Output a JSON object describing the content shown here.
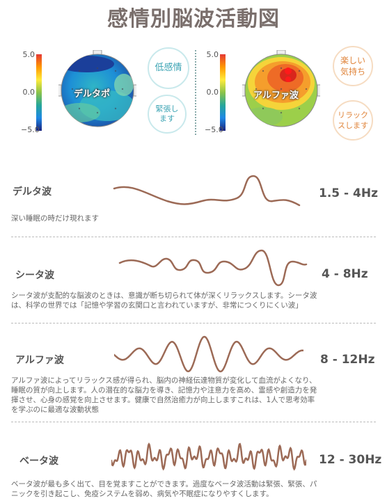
{
  "title": "感情別脳波活動図",
  "maps": {
    "scale_top": "5.0",
    "scale_mid": "0.0",
    "scale_bottom": "−5.0",
    "delta": {
      "label": "デルタポ",
      "bubbles": [
        "低感情",
        "緊張し\nます"
      ]
    },
    "alpha": {
      "label": "アルファ波",
      "bubbles": [
        "楽しい\n気持ち",
        "リラック\nスします"
      ]
    }
  },
  "waves": [
    {
      "name": "デルタ波",
      "freq": "1.5 - 4Hz",
      "desc": "深い睡眠の時だけ現れます"
    },
    {
      "name": "シータ波",
      "freq": "4 - 8Hz",
      "desc": "シータ波が支配的な脳波のときは、意識が断ち切られて体が深くリラックスします。シータ波\nは、科学の世界では「記憶や学習の玄関口と言われていますが、非常につくりにくい波」"
    },
    {
      "name": "アルファ波",
      "freq": "8 - 12Hz",
      "desc": "アルファ波によってリラックス感が得られ、脳内の神経伝達物質が変化して血流がよくなり、\n睡眠の質が向上します。人の潜在的な脳力を導き、記憶力や注意力を高め、霊感や創造力を発\n揮させ、心身の感覚を向上させます。健康で自然治癒力が向上しますこれは、1人で思考効率\nを学ぶのに最適な波動状態"
    },
    {
      "name": "ベータ波",
      "freq": "12 - 30Hz",
      "desc": "ベータ波が最も多く出て、目を覚ますことができます。過度なベータ波活動は緊張、緊張、パ\nニックを引き起こし、免疫システムを弱め、病気や不眠症になりやすくします。"
    }
  ],
  "colors": {
    "wave": "#9c6a56",
    "text": "#555555"
  }
}
